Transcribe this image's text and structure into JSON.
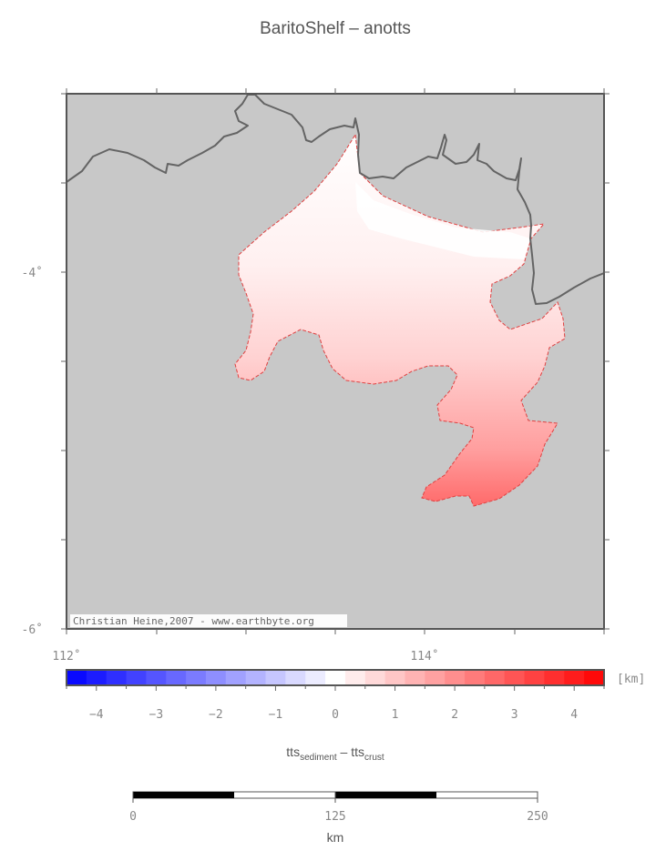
{
  "title": "BaritoShelf – anotts",
  "credit": "Christian Heine,2007 - www.earthbyte.org",
  "map": {
    "lon_ticks": [
      "112˚",
      "114˚"
    ],
    "lat_ticks": [
      "-4˚",
      "-6˚"
    ],
    "background_color": "#c8c8c8",
    "coastline_color": "#646464"
  },
  "colorbar": {
    "unit": "[km]",
    "ticks": [
      "-4",
      "-3",
      "-2",
      "-1",
      "0",
      "1",
      "2",
      "3",
      "4"
    ],
    "range": [
      -4.5,
      4.5
    ],
    "label_main": "tts",
    "label_sub1": "sediment",
    "label_minus": " – ",
    "label_main2": "tts",
    "label_sub2": "crust"
  },
  "scalebar": {
    "ticks": [
      "0",
      "125",
      "250"
    ],
    "unit": "km"
  }
}
